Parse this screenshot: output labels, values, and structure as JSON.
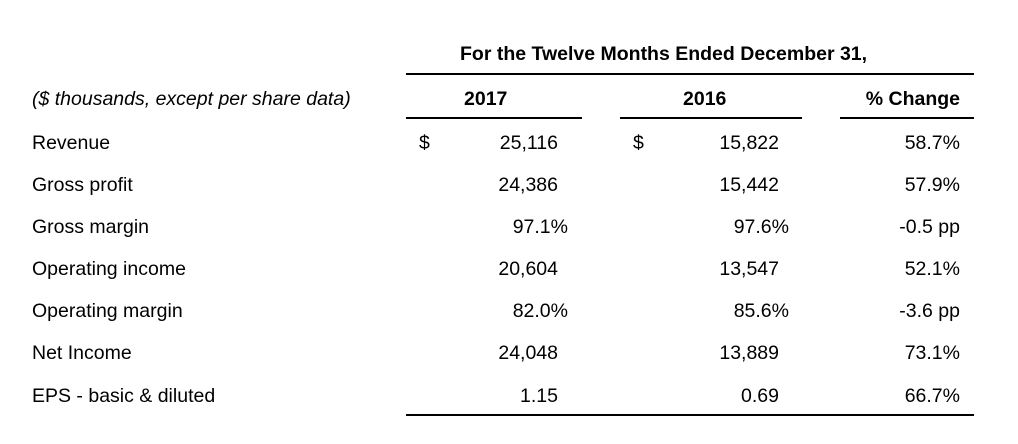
{
  "header": {
    "period_title": "For the Twelve Months Ended December 31,",
    "units_note": "($ thousands, except per share data)",
    "col_2017": "2017",
    "col_2016": "2016",
    "col_change": "% Change"
  },
  "currency_symbol": "$",
  "rows": [
    {
      "label": "Revenue",
      "v2017": "25,116",
      "v2016": "15,822",
      "change": "58.7%"
    },
    {
      "label": "Gross profit",
      "v2017": "24,386",
      "v2016": "15,442",
      "change": "57.9%"
    },
    {
      "label": "Gross margin",
      "v2017": "97.1%",
      "v2016": "97.6%",
      "change": "-0.5 pp"
    },
    {
      "label": "Operating income",
      "v2017": "20,604",
      "v2016": "13,547",
      "change": "52.1%"
    },
    {
      "label": "Operating margin",
      "v2017": "82.0%",
      "v2016": "85.6%",
      "change": "-3.6 pp"
    },
    {
      "label": "Net Income",
      "v2017": "24,048",
      "v2016": "13,889",
      "change": "73.1%"
    },
    {
      "label": "EPS - basic & diluted",
      "v2017": "1.15",
      "v2016": "0.69",
      "change": "66.7%"
    }
  ]
}
